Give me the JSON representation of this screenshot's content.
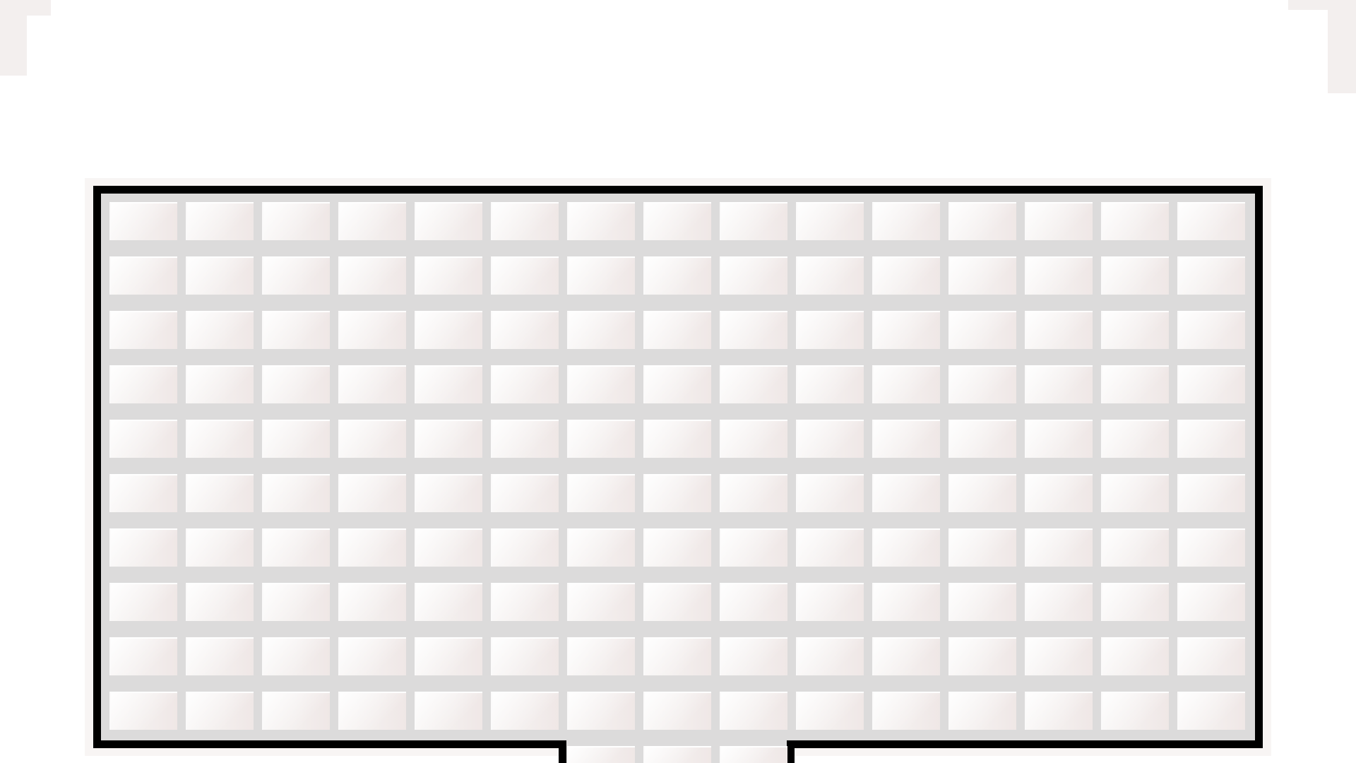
{
  "scene": {
    "kind": "tile-floor-room",
    "floor": {
      "rows": 10,
      "columns": 15,
      "passage_columns": 3
    },
    "colors": {
      "background": "#ffffff",
      "wall": "#000000",
      "grout": "#dcdbdb",
      "tile": "#f3eeed",
      "tile_highlight": "#ffffff",
      "halo": "#f8f5f4"
    },
    "icons": {
      "corner_left": "partial-tile-corner",
      "corner_right": "partial-tile-corner"
    }
  }
}
